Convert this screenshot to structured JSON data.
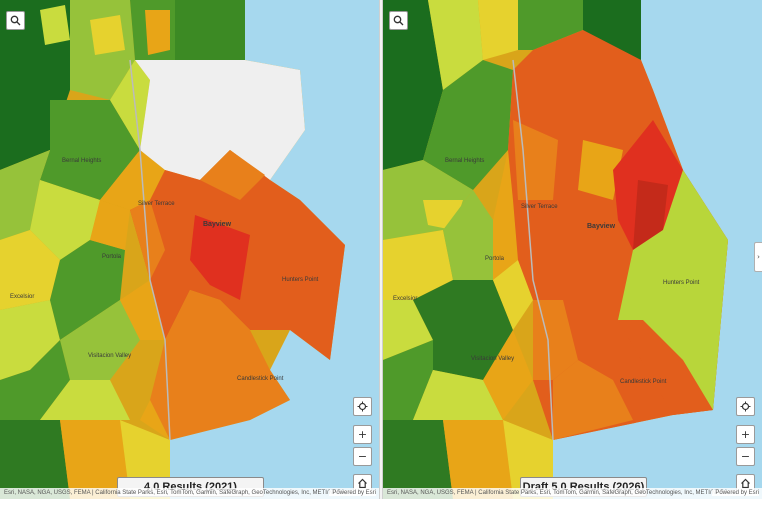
{
  "left_map": {
    "result_label": "4.0 Results (2021)",
    "attribution": "Esri, NASA, NGA, USGS, FEMA | California State Parks, Esri, TomTom, Garmin, SafeGraph, GeoTechnologies, Inc, METI/NASA, ...",
    "powered_by": "Powered by Esri"
  },
  "right_map": {
    "result_label": "Draft 5.0 Results (2026)",
    "attribution": "Esri, NASA, NGA, USGS, FEMA | California State Parks, Esri, TomTom, Garmin, SafeGraph, GeoTechnologies, Inc, METI/NASA, ...",
    "powered_by": "Powered by Esri"
  },
  "place_labels": {
    "bayview": "Bayview",
    "hunters_point": "Hunters Point",
    "candlestick_point": "Candlestick Point",
    "silver_terrace": "Silver Terrace",
    "bernal_heights": "Bernal Heights",
    "excelsior": "Excelsior",
    "visitacion_valley": "Visitacion Valley",
    "portola": "Portola"
  },
  "controls": {
    "search_icon": "search-icon",
    "locate_icon": "locate-icon",
    "zoom_in": "+",
    "zoom_out": "−",
    "home_icon": "home-icon",
    "panel_toggle": "›"
  },
  "colors": {
    "water": "#a6d8ee",
    "dark_green": "#1b6d1e",
    "green": "#4f9a2a",
    "light_green": "#96c23a",
    "yellow_green": "#c9dc3e",
    "yellow": "#e6d22e",
    "orange_yellow": "#e8a517",
    "orange": "#e8801b",
    "dark_orange": "#e25e1c",
    "red": "#e0301f",
    "no_data": "#efefef"
  }
}
